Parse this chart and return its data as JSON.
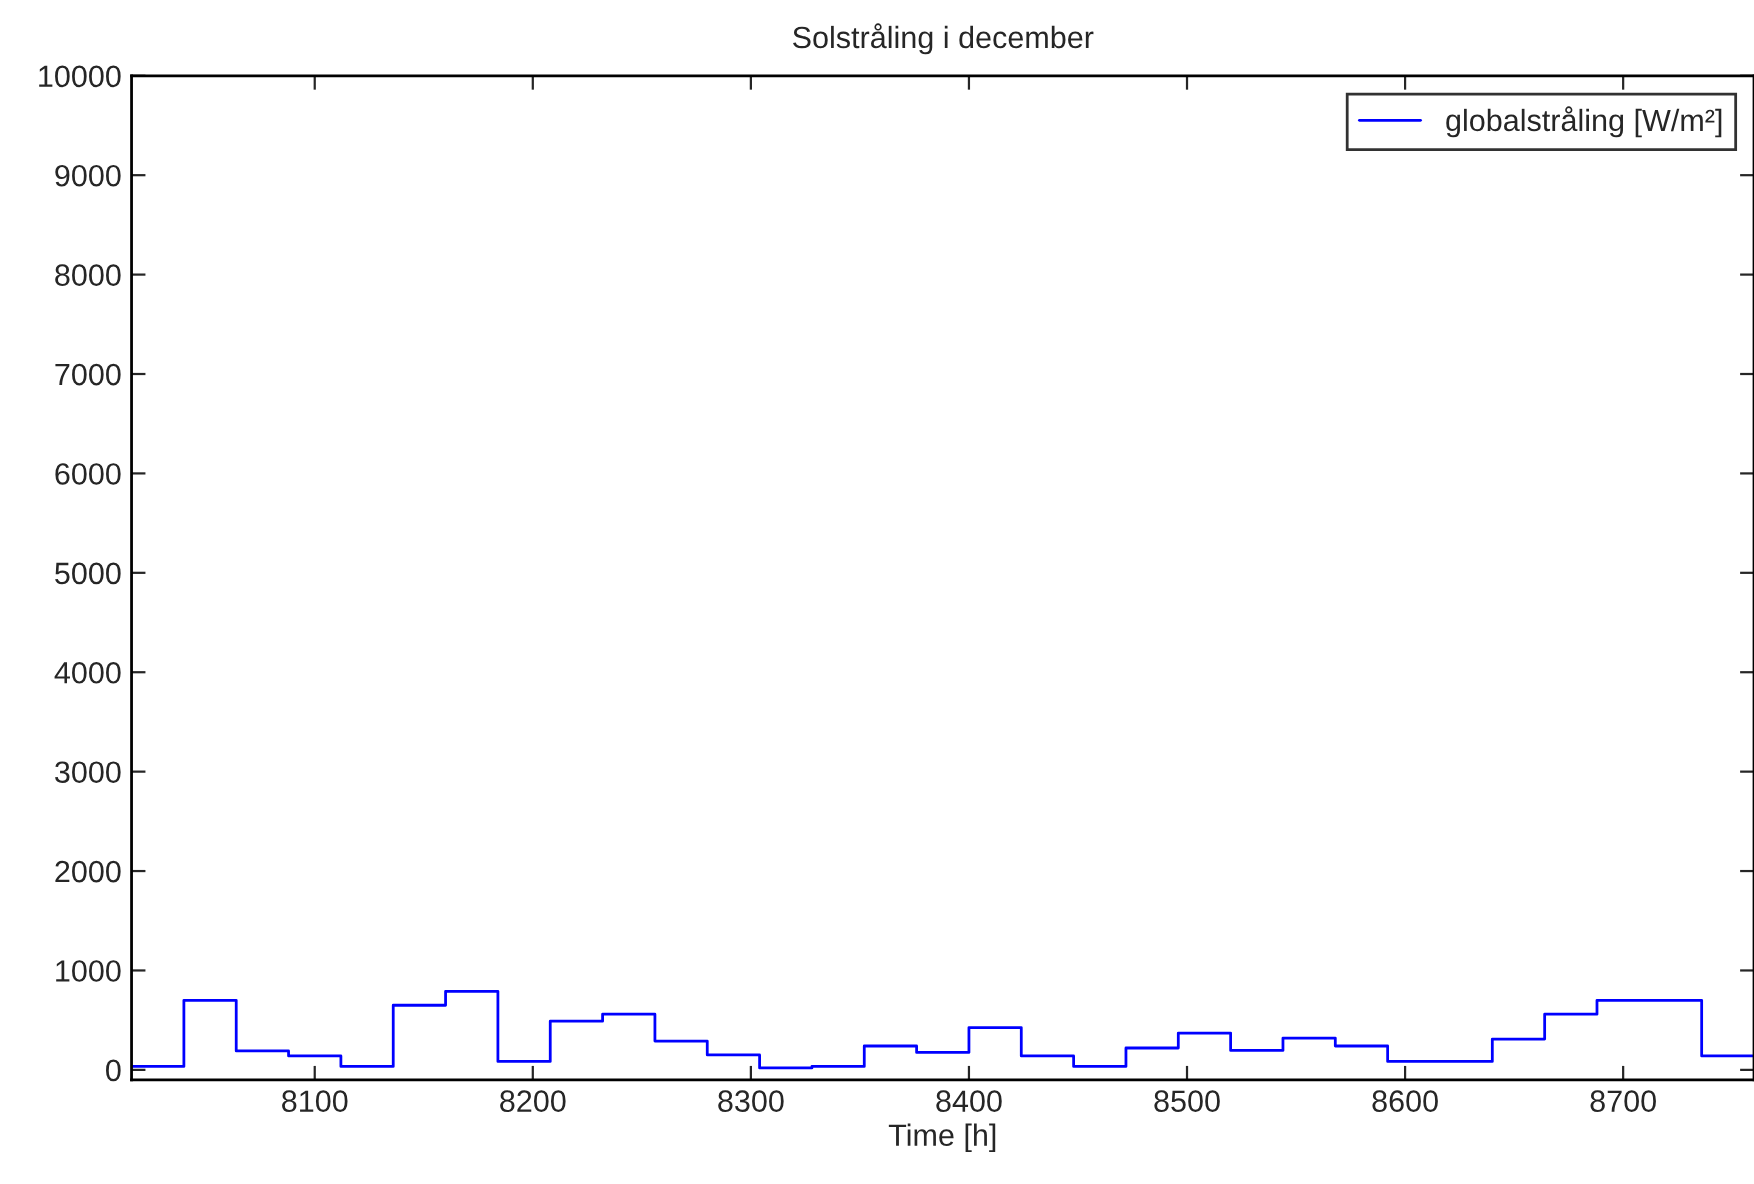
{
  "chart_data": {
    "type": "step",
    "title": "Solstråling i december",
    "xlabel": "Time [h]",
    "series": [
      {
        "name": "globalstråling [W/m²]",
        "color": "#0000ff",
        "x": [
          8016,
          8040,
          8064,
          8088,
          8112,
          8136,
          8160,
          8184,
          8208,
          8232,
          8256,
          8280,
          8304,
          8328,
          8352,
          8376,
          8400,
          8424,
          8448,
          8472,
          8496,
          8520,
          8544,
          8568,
          8592,
          8640,
          8664,
          8688,
          8736,
          8760
        ],
        "values": [
          35,
          700,
          190,
          140,
          35,
          650,
          790,
          85,
          490,
          560,
          290,
          150,
          20,
          35,
          240,
          175,
          425,
          140,
          35,
          220,
          370,
          195,
          320,
          240,
          85,
          310,
          560,
          700,
          140,
          140
        ]
      }
    ],
    "xlim": [
      8016,
      8760
    ],
    "ylim": [
      -100,
      10000
    ],
    "xticks": [
      8100,
      8200,
      8300,
      8400,
      8500,
      8600,
      8700
    ],
    "yticks": [
      0,
      1000,
      2000,
      3000,
      4000,
      5000,
      6000,
      7000,
      8000,
      9000,
      10000
    ],
    "grid": false,
    "legend": "top right"
  }
}
